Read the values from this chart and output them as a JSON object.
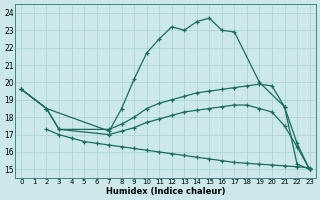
{
  "xlabel": "Humidex (Indice chaleur)",
  "bg_color": "#cce8ea",
  "line_color": "#1a6b60",
  "grid_color": "#aed4d6",
  "ylim": [
    14.5,
    24.5
  ],
  "xlim": [
    -0.5,
    23.5
  ],
  "yticks": [
    15,
    16,
    17,
    18,
    19,
    20,
    21,
    22,
    23,
    24
  ],
  "xticks": [
    0,
    1,
    2,
    3,
    4,
    5,
    6,
    7,
    8,
    9,
    10,
    11,
    12,
    13,
    14,
    15,
    16,
    17,
    18,
    19,
    20,
    21,
    22,
    23
  ],
  "series": {
    "s1_x": [
      0,
      2,
      7,
      8,
      9,
      10,
      11,
      12,
      13,
      14,
      15,
      16,
      17,
      19,
      21,
      22,
      23
    ],
    "s1_y": [
      19.6,
      18.5,
      17.2,
      18.5,
      20.2,
      21.7,
      22.5,
      23.2,
      23.0,
      23.5,
      23.7,
      23.0,
      22.9,
      20.0,
      18.6,
      15.3,
      15.0
    ],
    "s2_x": [
      0,
      2,
      3,
      7,
      8,
      9,
      10,
      11,
      12,
      13,
      14,
      15,
      16,
      17,
      18,
      19,
      20,
      21,
      22,
      23
    ],
    "s2_y": [
      19.6,
      18.5,
      17.3,
      17.3,
      17.6,
      18.0,
      18.5,
      18.8,
      19.0,
      19.2,
      19.4,
      19.5,
      19.6,
      19.7,
      19.8,
      19.9,
      19.8,
      18.6,
      16.5,
      15.0
    ],
    "s3_x": [
      0,
      2,
      3,
      7,
      8,
      9,
      10,
      11,
      12,
      13,
      14,
      15,
      16,
      17,
      18,
      19,
      20,
      21,
      22,
      23
    ],
    "s3_y": [
      19.6,
      18.5,
      17.3,
      17.0,
      17.2,
      17.4,
      17.7,
      17.9,
      18.1,
      18.3,
      18.4,
      18.5,
      18.6,
      18.7,
      18.7,
      18.5,
      18.3,
      17.5,
      16.3,
      15.0
    ],
    "s4_x": [
      2,
      3,
      4,
      5,
      6,
      7,
      8,
      9,
      10,
      11,
      12,
      13,
      14,
      15,
      16,
      17,
      18,
      19,
      20,
      21,
      22,
      23
    ],
    "s4_y": [
      17.3,
      17.0,
      16.8,
      16.6,
      16.5,
      16.4,
      16.3,
      16.2,
      16.1,
      16.0,
      15.9,
      15.8,
      15.7,
      15.6,
      15.5,
      15.4,
      15.35,
      15.3,
      15.25,
      15.2,
      15.15,
      15.1
    ]
  }
}
